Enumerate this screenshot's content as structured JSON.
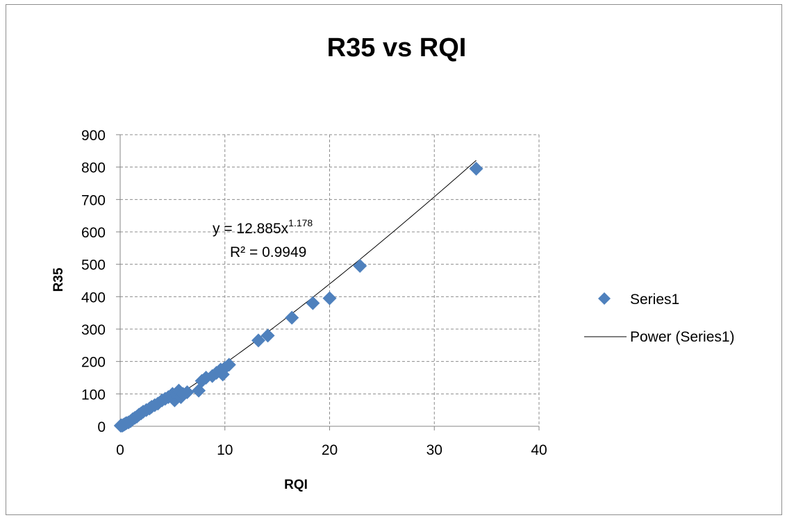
{
  "chart_data": {
    "type": "scatter",
    "title": "R35 vs RQI",
    "xlabel": "RQI",
    "ylabel": "R35",
    "xlim": [
      0,
      40
    ],
    "ylim": [
      0,
      900
    ],
    "x_ticks": [
      "0",
      "10",
      "20",
      "30",
      "40"
    ],
    "y_ticks": [
      "0",
      "100",
      "200",
      "300",
      "400",
      "500",
      "600",
      "700",
      "800",
      "900"
    ],
    "grid": true,
    "legend_position": "right",
    "colors": {
      "series": "#4F81BD",
      "trendline": "#000000",
      "grid": "#8c8c8c",
      "border": "#8e8e8e"
    },
    "series": [
      {
        "name": "Series1",
        "marker": "diamond",
        "x": [
          0.05,
          0.1,
          0.2,
          0.3,
          0.4,
          0.5,
          0.6,
          0.8,
          1.0,
          1.2,
          1.4,
          1.6,
          1.8,
          2.0,
          2.2,
          2.5,
          2.8,
          3.0,
          3.3,
          3.6,
          4.0,
          4.3,
          4.6,
          4.9,
          5.0,
          5.2,
          5.4,
          5.6,
          5.8,
          6.0,
          6.4,
          7.5,
          7.8,
          8.2,
          8.8,
          9.2,
          9.6,
          9.8,
          10.0,
          10.4,
          13.2,
          14.1,
          16.4,
          18.4,
          20.0,
          22.9,
          34.0
        ],
        "y": [
          2,
          3,
          2,
          4,
          6,
          8,
          10,
          12,
          16,
          22,
          26,
          30,
          36,
          40,
          45,
          50,
          55,
          60,
          65,
          70,
          80,
          85,
          90,
          95,
          100,
          80,
          95,
          110,
          90,
          100,
          105,
          110,
          140,
          150,
          155,
          165,
          175,
          160,
          180,
          190,
          265,
          280,
          335,
          380,
          395,
          495,
          795
        ]
      }
    ],
    "trendline": {
      "name": "Power (Series1)",
      "type": "power",
      "a": 12.885,
      "b": 1.178,
      "x_range": [
        0,
        34
      ],
      "equation_label": "y = 12.885x",
      "equation_exponent": "1.178",
      "r2_label": "R² = 0.9949"
    }
  }
}
